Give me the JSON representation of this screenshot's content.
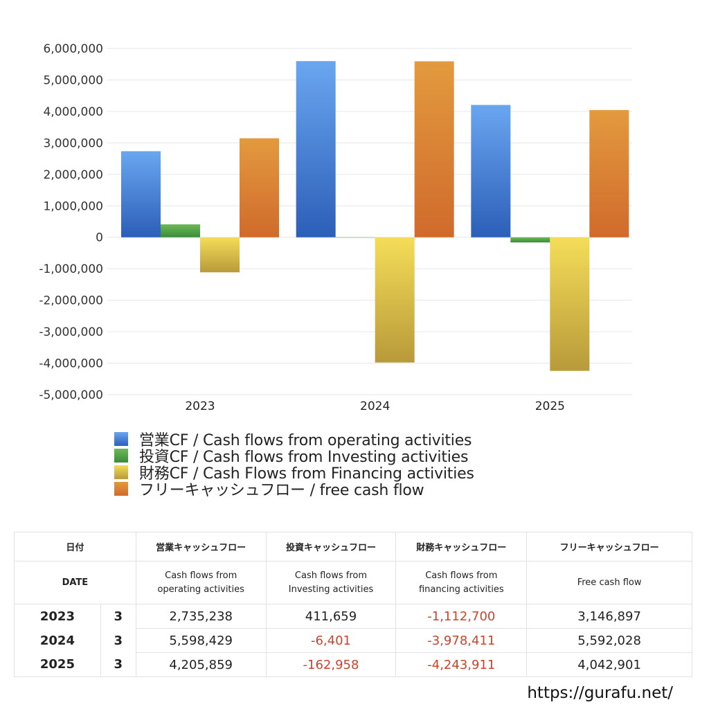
{
  "chart_data": {
    "type": "bar",
    "title": "",
    "xlabel": "",
    "ylabel": "",
    "categories": [
      "2023",
      "2024",
      "2025"
    ],
    "ylim": [
      -5000000,
      6000000
    ],
    "yticks": [
      6000000,
      5000000,
      4000000,
      3000000,
      2000000,
      1000000,
      0,
      -1000000,
      -2000000,
      -3000000,
      -4000000,
      -5000000
    ],
    "ytick_labels": [
      "6,000,000",
      "5,000,000",
      "4,000,000",
      "3,000,000",
      "2,000,000",
      "1,000,000",
      "0",
      "-1,000,000",
      "-2,000,000",
      "-3,000,000",
      "-4,000,000",
      "-5,000,000"
    ],
    "grid": true,
    "legend_position": "bottom",
    "series": [
      {
        "name": "営業CF / Cash flows from operating activities",
        "color_top": "#6aa6f0",
        "color_bottom": "#2c5fb8",
        "values": [
          2735238,
          5598429,
          4205859
        ]
      },
      {
        "name": "投資CF / Cash flows from Investing activities",
        "color_top": "#6cba5a",
        "color_bottom": "#3a8b3a",
        "values": [
          411659,
          -6401,
          -162958
        ]
      },
      {
        "name": "財務CF / Cash Flows from Financing activities",
        "color_top": "#f4dd58",
        "color_bottom": "#b89a3a",
        "values": [
          -1112700,
          -3978411,
          -4243911
        ]
      },
      {
        "name": "フリーキャッシュフロー / free cash flow",
        "color_top": "#e39a3e",
        "color_bottom": "#d06a2c",
        "values": [
          3146897,
          5592028,
          4042901
        ]
      }
    ]
  },
  "legend": [
    {
      "label": "営業CF / Cash flows from operating activities",
      "color": "#3f7fd8"
    },
    {
      "label": "投資CF / Cash flows from Investing activities",
      "color": "#4a9d45"
    },
    {
      "label": "財務CF / Cash Flows from Financing activities",
      "color": "#d9c048"
    },
    {
      "label": "フリーキャッシュフロー / free cash flow",
      "color": "#dd8238"
    }
  ],
  "table": {
    "header_jp": {
      "date": "日付",
      "operating": "営業キャッシュフロー",
      "investing": "投資キャッシュフロー",
      "financing": "財務キャッシュフロー",
      "free": "フリーキャッシュフロー"
    },
    "header_en": {
      "date": "DATE",
      "operating_1": "Cash flows from",
      "operating_2": "operating activities",
      "investing_1": "Cash flows from",
      "investing_2": "Investing activities",
      "financing_1": "Cash flows from",
      "financing_2": "financing activities",
      "free": "Free cash flow"
    },
    "rows": [
      {
        "year": "2023",
        "month": "3",
        "operating": "2,735,238",
        "investing": "411,659",
        "financing": "-1,112,700",
        "free": "3,146,897"
      },
      {
        "year": "2024",
        "month": "3",
        "operating": "5,598,429",
        "investing": "-6,401",
        "financing": "-3,978,411",
        "free": "5,592,028"
      },
      {
        "year": "2025",
        "month": "3",
        "operating": "4,205,859",
        "investing": "-162,958",
        "financing": "-4,243,911",
        "free": "4,042,901"
      }
    ],
    "negative_color": "#c8442e"
  },
  "footer": {
    "url": "https://gurafu.net/"
  }
}
